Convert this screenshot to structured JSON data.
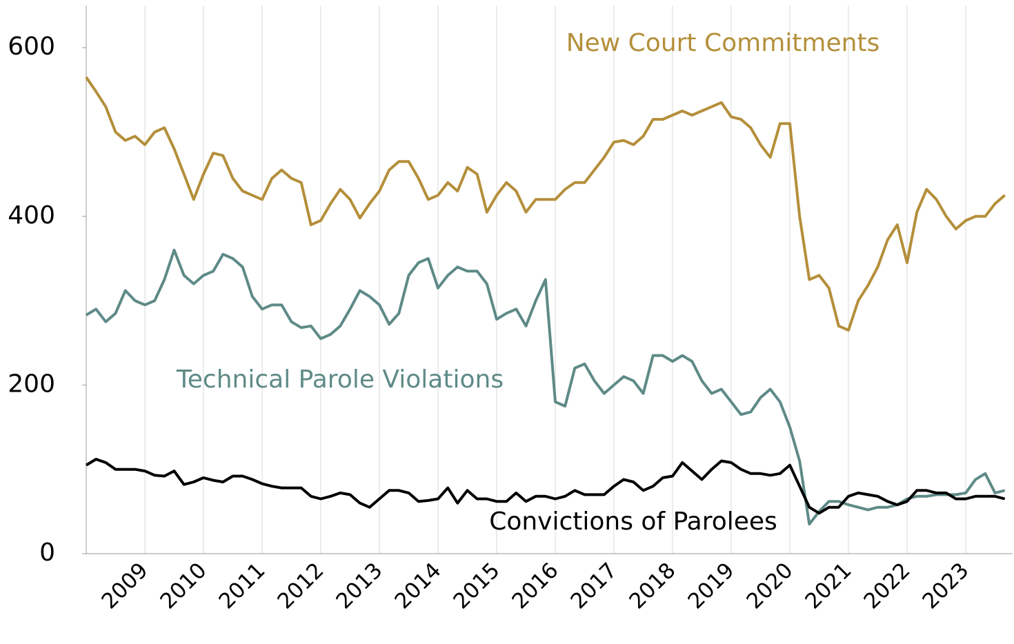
{
  "chart_data": {
    "type": "line",
    "x": [
      2008,
      2008.167,
      2008.333,
      2008.5,
      2008.667,
      2008.833,
      2009,
      2009.167,
      2009.333,
      2009.5,
      2009.667,
      2009.833,
      2010,
      2010.167,
      2010.333,
      2010.5,
      2010.667,
      2010.833,
      2011,
      2011.167,
      2011.333,
      2011.5,
      2011.667,
      2011.833,
      2012,
      2012.167,
      2012.333,
      2012.5,
      2012.667,
      2012.833,
      2013,
      2013.167,
      2013.333,
      2013.5,
      2013.667,
      2013.833,
      2014,
      2014.167,
      2014.333,
      2014.5,
      2014.667,
      2014.833,
      2015,
      2015.167,
      2015.333,
      2015.5,
      2015.667,
      2015.833,
      2016,
      2016.167,
      2016.333,
      2016.5,
      2016.667,
      2016.833,
      2017,
      2017.167,
      2017.333,
      2017.5,
      2017.667,
      2017.833,
      2018,
      2018.167,
      2018.333,
      2018.5,
      2018.667,
      2018.833,
      2019,
      2019.167,
      2019.333,
      2019.5,
      2019.667,
      2019.833,
      2020,
      2020.167,
      2020.333,
      2020.5,
      2020.667,
      2020.833,
      2021,
      2021.167,
      2021.333,
      2021.5,
      2021.667,
      2021.833,
      2022,
      2022.167,
      2022.333,
      2022.5,
      2022.667,
      2022.833,
      2023,
      2023.167,
      2023.333,
      2023.5,
      2023.667
    ],
    "series": [
      {
        "name": "New Court Commitments",
        "color": "#b48f3a",
        "values": [
          565,
          548,
          530,
          500,
          490,
          495,
          485,
          500,
          505,
          480,
          450,
          420,
          450,
          475,
          472,
          445,
          430,
          425,
          420,
          445,
          455,
          445,
          440,
          390,
          395,
          415,
          432,
          420,
          398,
          415,
          430,
          455,
          465,
          465,
          445,
          420,
          425,
          440,
          430,
          458,
          450,
          405,
          425,
          440,
          430,
          405,
          420,
          420,
          420,
          432,
          440,
          440,
          455,
          470,
          488,
          490,
          485,
          495,
          515,
          515,
          520,
          525,
          520,
          525,
          530,
          535,
          518,
          515,
          505,
          485,
          470,
          510,
          510,
          400,
          325,
          330,
          315,
          270,
          265,
          300,
          318,
          340,
          372,
          390,
          345,
          405,
          432,
          420,
          400,
          385,
          395,
          400,
          400,
          415,
          425
        ]
      },
      {
        "name": "Technical Parole Violations",
        "color": "#5e8a87",
        "values": [
          283,
          290,
          275,
          285,
          312,
          300,
          295,
          300,
          325,
          360,
          330,
          320,
          330,
          335,
          355,
          350,
          340,
          305,
          290,
          295,
          295,
          275,
          268,
          270,
          255,
          260,
          270,
          290,
          312,
          305,
          295,
          272,
          285,
          330,
          345,
          350,
          315,
          330,
          340,
          335,
          335,
          320,
          278,
          285,
          290,
          270,
          300,
          325,
          180,
          175,
          220,
          225,
          205,
          190,
          200,
          210,
          205,
          190,
          235,
          235,
          228,
          235,
          228,
          205,
          190,
          195,
          180,
          165,
          168,
          185,
          195,
          180,
          150,
          110,
          35,
          50,
          62,
          62,
          58,
          55,
          52,
          55,
          55,
          58,
          65,
          68,
          68,
          70,
          70,
          70,
          72,
          88,
          95,
          72,
          75
        ]
      },
      {
        "name": "Convictions of Parolees",
        "color": "#000000",
        "values": [
          105,
          112,
          108,
          100,
          100,
          100,
          98,
          93,
          92,
          98,
          82,
          85,
          90,
          87,
          85,
          92,
          92,
          88,
          83,
          80,
          78,
          78,
          78,
          68,
          65,
          68,
          72,
          70,
          60,
          55,
          65,
          75,
          75,
          72,
          62,
          63,
          65,
          78,
          60,
          75,
          65,
          65,
          62,
          62,
          72,
          62,
          68,
          68,
          65,
          68,
          75,
          70,
          70,
          70,
          80,
          88,
          85,
          75,
          80,
          90,
          92,
          108,
          98,
          88,
          100,
          110,
          108,
          100,
          95,
          95,
          93,
          95,
          105,
          80,
          55,
          48,
          55,
          55,
          68,
          72,
          70,
          68,
          62,
          58,
          62,
          75,
          75,
          72,
          72,
          65,
          65,
          68,
          68,
          68,
          65
        ]
      }
    ],
    "xlim": [
      2008,
      2023.8
    ],
    "xticks": [
      2009,
      2010,
      2011,
      2012,
      2013,
      2014,
      2015,
      2016,
      2017,
      2018,
      2019,
      2020,
      2021,
      2022,
      2023
    ],
    "ylim": [
      0,
      650
    ],
    "yticks": [
      0,
      200,
      400,
      600
    ],
    "grid": "x"
  }
}
